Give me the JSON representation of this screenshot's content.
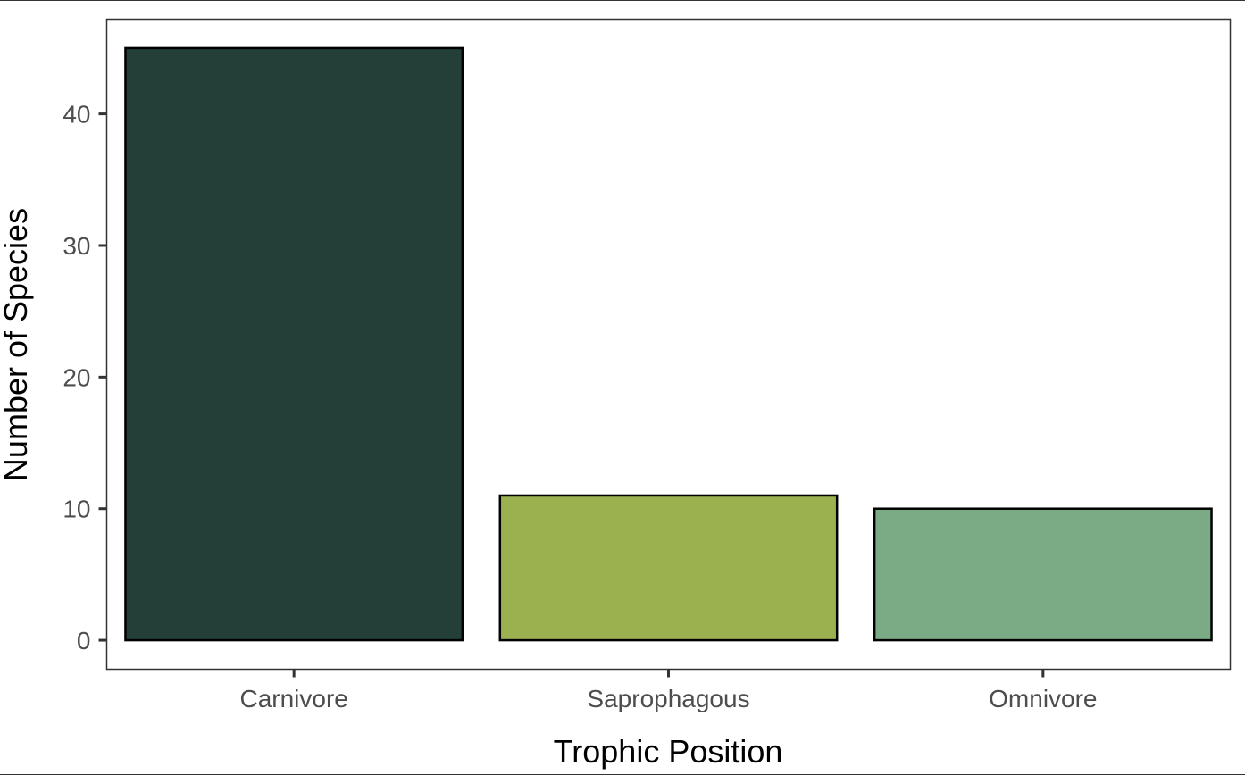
{
  "chart_data": {
    "type": "bar",
    "categories": [
      "Carnivore",
      "Saprophagous",
      "Omnivore"
    ],
    "values": [
      45,
      11,
      10
    ],
    "colors": [
      "#243e38",
      "#9bb150",
      "#7bab85"
    ],
    "bar_border_color": "#000000",
    "title": "",
    "xlabel": "Trophic Position",
    "ylabel": "Number of Species",
    "ylim": [
      -2.2,
      47.2
    ],
    "yticks": [
      0,
      10,
      20,
      30,
      40
    ],
    "grid": false,
    "legend": "none"
  }
}
